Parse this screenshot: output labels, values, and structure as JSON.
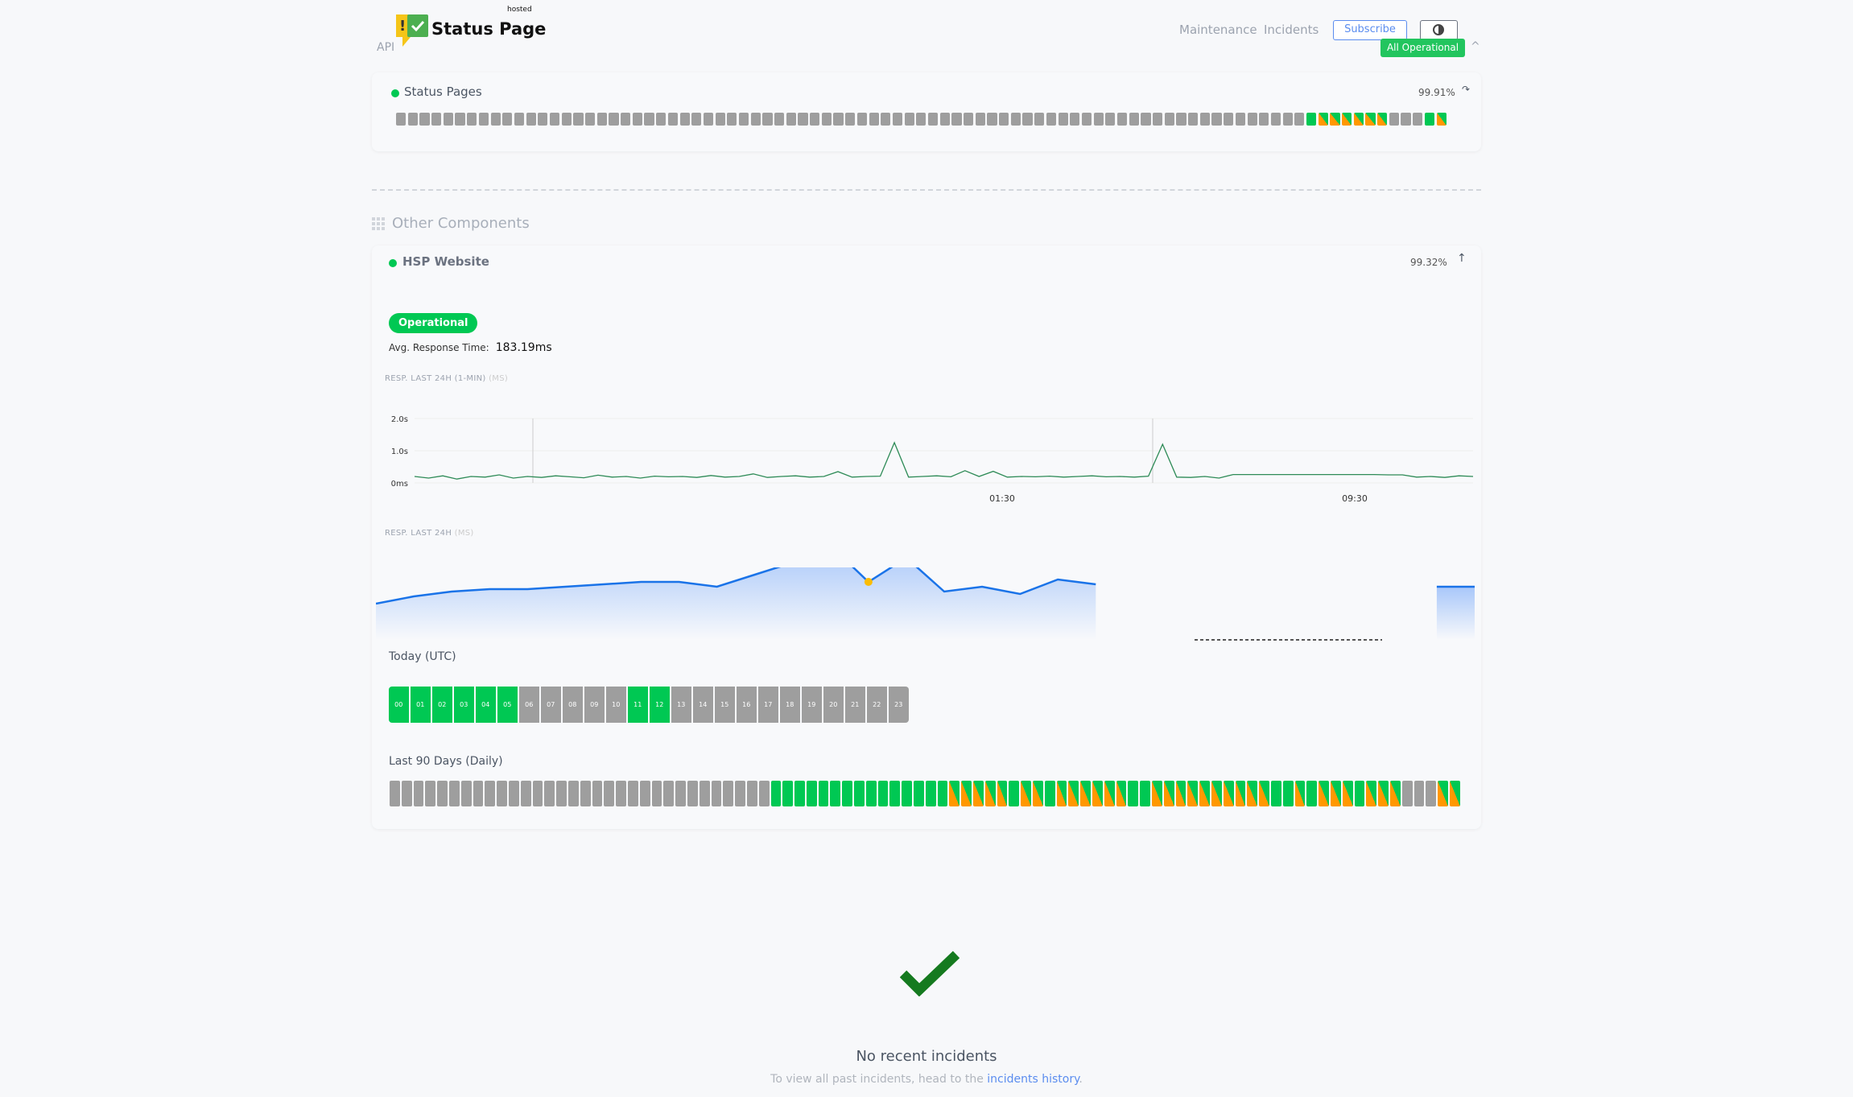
{
  "header": {
    "logo_text": "Status Page",
    "logo_hosted": "hosted",
    "api_link": "API",
    "nav": [
      "Maintenance",
      "Incidents"
    ],
    "subscribe": "Subscribe",
    "theme_icon": "half-circle-icon",
    "overall_status": "All Operational"
  },
  "groups": [
    {
      "name": "Status Pages",
      "uptime": "99.91%",
      "bars": "XXXXXXXXXXXXXXXXXXXXXXXXXXXXXXXXXXXXXXXXXXXXXXXXXXXXXXXXXXXXXXXXXXXXXXXXXXXXXGOOOOOOXXXGO"
    }
  ],
  "other": {
    "title": "Other Components",
    "component": {
      "name": "HSP Website",
      "uptime": "99.32%",
      "status": "Operational",
      "avg_label": "Avg. Response Time:",
      "avg_value": "183.19ms",
      "chart1_label": "RESP. LAST 24H (1-MIN)",
      "chart1_unit": "(MS)",
      "chart2_label": "RESP. LAST 24H",
      "chart2_unit": "(MS)",
      "today_label": "Today (UTC)",
      "hours": [
        "00",
        "01",
        "02",
        "03",
        "04",
        "05",
        "06",
        "07",
        "08",
        "09",
        "10",
        "11",
        "12",
        "13",
        "14",
        "15",
        "16",
        "17",
        "18",
        "19",
        "20",
        "21",
        "22",
        "23"
      ],
      "hour_status": "GGGGGGXXXXXGGXXXXXXXXXXX",
      "days_label": "Last 90 Days (Daily)",
      "days": "XXXXXXXXXXXXXXXXXXXXXXXXXXXXXXXXGGGGGGGGGGGGGGGOOOOOGOOGOOOOOOGGOOOOOOOOOOGGOGOOOGOOOXXXOO"
    }
  },
  "chart_data": [
    {
      "type": "line",
      "title": "RESP. LAST 24H (1-MIN) (MS)",
      "yticks": [
        "0ms",
        "1.0s",
        "2.0s"
      ],
      "ylim": [
        0,
        2.0
      ],
      "xticks": [
        "01:30",
        "09:30"
      ],
      "color": "#2e8b57",
      "grid": true,
      "values": [
        0.2,
        0.15,
        0.22,
        0.12,
        0.2,
        0.18,
        0.25,
        0.15,
        0.2,
        0.17,
        0.22,
        0.19,
        0.16,
        0.24,
        0.18,
        0.2,
        0.15,
        0.21,
        0.19,
        0.2,
        0.17,
        0.23,
        0.18,
        0.2,
        0.28,
        0.17,
        0.2,
        0.22,
        0.18,
        0.2,
        0.35,
        0.18,
        0.2,
        0.21,
        1.25,
        0.18,
        0.2,
        0.22,
        0.19,
        0.38,
        0.2,
        0.36,
        0.18,
        0.2,
        0.19,
        0.21,
        0.18,
        0.2,
        0.22,
        0.19,
        0.2,
        0.18,
        0.21,
        1.2,
        0.18,
        0.17,
        0.2,
        0.15,
        0.26,
        0.26,
        0.26,
        0.26,
        0.26,
        0.26,
        0.26,
        0.26,
        0.26,
        0.26,
        0.26,
        0.25,
        0.25,
        0.18,
        0.2,
        0.17,
        0.22,
        0.2
      ]
    },
    {
      "type": "area",
      "title": "RESP. LAST 24H (MS)",
      "color": "#1a73e8",
      "values": [
        183,
        186,
        188,
        189,
        189,
        190,
        191,
        192,
        192,
        190,
        195,
        200,
        207,
        192,
        202,
        188,
        190,
        187,
        193,
        191,
        null,
        null,
        null,
        null,
        null,
        null,
        null,
        null,
        190,
        190
      ],
      "highlight_index": 13
    }
  ],
  "footer": {
    "title": "No recent incidents",
    "text": "To view all past incidents, head to the ",
    "link": "incidents history",
    "end": "."
  }
}
